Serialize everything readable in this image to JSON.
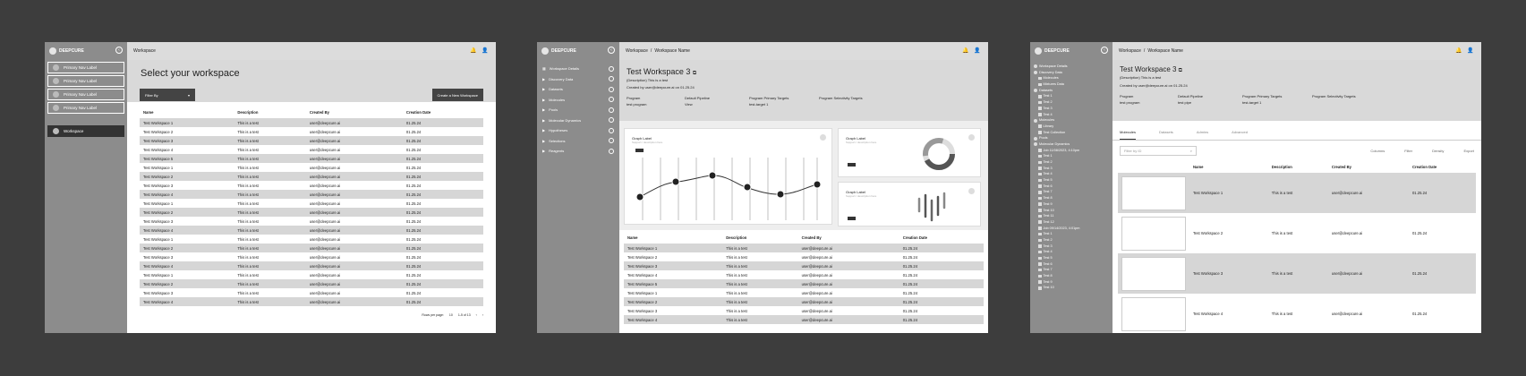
{
  "brand": "DEEPCURE",
  "icons": {
    "bell": "bell-icon",
    "user": "user-icon",
    "collapse": "chevron-left-icon",
    "copy": "copy-icon"
  },
  "screen1": {
    "breadcrumb": "Workspace",
    "nav": [
      "Primary Nav Label",
      "Primary Nav Label",
      "Primary Nav Label",
      "Primary Nav Label"
    ],
    "nav_selected": "Workspace",
    "title": "Select your workspace",
    "filter_label": "Filter By",
    "create_label": "Create a New Workspace",
    "columns": [
      "Name",
      "Description",
      "Created By",
      "Creation Date"
    ],
    "rows": [
      [
        "Test Workspace 1",
        "This is a test",
        "user@deepcure.ai",
        "01.25.24"
      ],
      [
        "Test Workspace 2",
        "This is a test",
        "user@deepcure.ai",
        "01.25.24"
      ],
      [
        "Test Workspace 3",
        "This is a test",
        "user@deepcure.ai",
        "01.25.24"
      ],
      [
        "Test Workspace 4",
        "This is a test",
        "user@deepcure.ai",
        "01.25.24"
      ],
      [
        "Test Workspace 5",
        "This is a test",
        "user@deepcure.ai",
        "01.25.24"
      ],
      [
        "Test Workspace 1",
        "This is a test",
        "user@deepcure.ai",
        "01.25.24"
      ],
      [
        "Test Workspace 2",
        "This is a test",
        "user@deepcure.ai",
        "01.25.24"
      ],
      [
        "Test Workspace 3",
        "This is a test",
        "user@deepcure.ai",
        "01.25.24"
      ],
      [
        "Test Workspace 4",
        "This is a test",
        "user@deepcure.ai",
        "01.25.24"
      ],
      [
        "Test Workspace 1",
        "This is a test",
        "user@deepcure.ai",
        "01.25.24"
      ],
      [
        "Test Workspace 2",
        "This is a test",
        "user@deepcure.ai",
        "01.25.24"
      ],
      [
        "Test Workspace 3",
        "This is a test",
        "user@deepcure.ai",
        "01.25.24"
      ],
      [
        "Test Workspace 4",
        "This is a test",
        "user@deepcure.ai",
        "01.25.24"
      ],
      [
        "Test Workspace 1",
        "This is a test",
        "user@deepcure.ai",
        "01.25.24"
      ],
      [
        "Test Workspace 2",
        "This is a test",
        "user@deepcure.ai",
        "01.25.24"
      ],
      [
        "Test Workspace 3",
        "This is a test",
        "user@deepcure.ai",
        "01.25.24"
      ],
      [
        "Test Workspace 4",
        "This is a test",
        "user@deepcure.ai",
        "01.25.24"
      ],
      [
        "Test Workspace 1",
        "This is a test",
        "user@deepcure.ai",
        "01.25.24"
      ],
      [
        "Test Workspace 2",
        "This is a test",
        "user@deepcure.ai",
        "01.25.24"
      ],
      [
        "Test Workspace 3",
        "This is a test",
        "user@deepcure.ai",
        "01.25.24"
      ],
      [
        "Test Workspace 4",
        "This is a test",
        "user@deepcure.ai",
        "01.25.24"
      ]
    ],
    "pager": {
      "rows_label": "Rows per page:",
      "rows_value": "10",
      "range": "1-5 of 13"
    }
  },
  "screen2": {
    "breadcrumb": [
      "Workspace",
      "/",
      "Workspace Name"
    ],
    "sidebar": [
      "Workspace Details",
      "Discovery Data",
      "Datasets",
      "Molecules",
      "Pools",
      "Molecular Dynamics",
      "Hypotheses",
      "Selections",
      "Reagents"
    ],
    "title": "Test Workspace 3",
    "description": "(Description) This is a test",
    "created": "Created by user@deepcure.ai on 01.25.24",
    "meta": [
      {
        "label": "Program",
        "value": "test program"
      },
      {
        "label": "Default Pipeline",
        "value": "View"
      },
      {
        "label": "Program Primary Targets",
        "value": "test-target 1"
      },
      {
        "label": "Program Selectivity Targets",
        "value": ""
      }
    ],
    "graphs": [
      {
        "title": "Graph Label",
        "sub": "Support / description here"
      },
      {
        "title": "Graph Label",
        "sub": "Support / description here"
      },
      {
        "title": "Graph Label",
        "sub": "Support / description here"
      }
    ],
    "columns": [
      "Name",
      "Description",
      "Created By",
      "Creation Date"
    ],
    "rows": [
      [
        "Test Workspace 1",
        "This is a test",
        "user@deepcure.ai",
        "01.25.24"
      ],
      [
        "Test Workspace 2",
        "This is a test",
        "user@deepcure.ai",
        "01.25.24"
      ],
      [
        "Test Workspace 3",
        "This is a test",
        "user@deepcure.ai",
        "01.25.24"
      ],
      [
        "Test Workspace 4",
        "This is a test",
        "user@deepcure.ai",
        "01.25.24"
      ],
      [
        "Test Workspace 5",
        "This is a test",
        "user@deepcure.ai",
        "01.25.24"
      ],
      [
        "Test Workspace 1",
        "This is a test",
        "user@deepcure.ai",
        "01.25.24"
      ],
      [
        "Test Workspace 2",
        "This is a test",
        "user@deepcure.ai",
        "01.25.24"
      ],
      [
        "Test Workspace 3",
        "This is a test",
        "user@deepcure.ai",
        "01.25.24"
      ],
      [
        "Test Workspace 4",
        "This is a test",
        "user@deepcure.ai",
        "01.25.24"
      ]
    ]
  },
  "screen3": {
    "breadcrumb": [
      "Workspace",
      "/",
      "Workspace Name"
    ],
    "title": "Test Workspace 3",
    "description": "(Description) This is a test",
    "created": "Created by user@deepcure.ai on 01.25.24",
    "meta": [
      {
        "label": "Program",
        "value": "test program"
      },
      {
        "label": "Default Pipeline",
        "value": "test pipe"
      },
      {
        "label": "Program Primary Targets",
        "value": "test-target 1"
      },
      {
        "label": "Program Selectivity Targets",
        "value": ""
      }
    ],
    "tree": [
      {
        "t": "Workspace Details",
        "h": true
      },
      {
        "t": "Discovery Data",
        "h": true
      },
      {
        "t": "Molecules"
      },
      {
        "t": "Mixtures Data"
      },
      {
        "t": "Datasets",
        "h": true
      },
      {
        "t": "Test 1"
      },
      {
        "t": "Test 2"
      },
      {
        "t": "Test 3"
      },
      {
        "t": "Test 4"
      },
      {
        "t": "Molecules",
        "h": true
      },
      {
        "t": "Library"
      },
      {
        "t": "Test Collection"
      },
      {
        "t": "Pools",
        "h": true
      },
      {
        "t": "Molecular Dynamics",
        "h": true
      },
      {
        "t": "Job 11/08/2023, 4:10pm"
      },
      {
        "t": "Test 1"
      },
      {
        "t": "Test 2"
      },
      {
        "t": "Test 3"
      },
      {
        "t": "Test 4"
      },
      {
        "t": "Test 5"
      },
      {
        "t": "Test 6"
      },
      {
        "t": "Test 7"
      },
      {
        "t": "Test 8"
      },
      {
        "t": "Test 9"
      },
      {
        "t": "Test 10"
      },
      {
        "t": "Test 11"
      },
      {
        "t": "Test 12"
      },
      {
        "t": "Job 09/14/2023, 4:01pm"
      },
      {
        "t": "Test 1"
      },
      {
        "t": "Test 2"
      },
      {
        "t": "Test 3"
      },
      {
        "t": "Test 4"
      },
      {
        "t": "Test 5"
      },
      {
        "t": "Test 6"
      },
      {
        "t": "Test 7"
      },
      {
        "t": "Test 8"
      },
      {
        "t": "Test 9"
      },
      {
        "t": "Test 10"
      }
    ],
    "tabs": [
      "Molecules",
      "Datasets",
      "Admins",
      "Advanced"
    ],
    "filter_placeholder": "Filter by ID",
    "tools": [
      "Columns",
      "Filter",
      "Density",
      "Export"
    ],
    "columns": [
      "Name",
      "Description",
      "Created By",
      "Creation Date"
    ],
    "rows": [
      [
        "Test Workspace 1",
        "This is a test",
        "user@deepcure.ai",
        "01.25.24"
      ],
      [
        "Test Workspace 2",
        "This is a test",
        "user@deepcure.ai",
        "01.25.24"
      ],
      [
        "Test Workspace 3",
        "This is a test",
        "user@deepcure.ai",
        "01.25.24"
      ],
      [
        "Test Workspace 4",
        "This is a test",
        "user@deepcure.ai",
        "01.25.24"
      ]
    ]
  }
}
